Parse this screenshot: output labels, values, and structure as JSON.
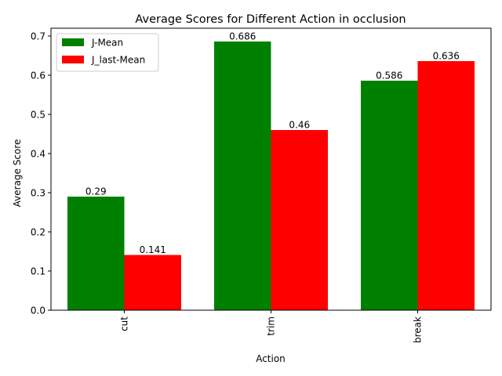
{
  "chart_data": {
    "type": "bar",
    "title": "Average Scores for Different Action in occlusion",
    "xlabel": "Action",
    "ylabel": "Average Score",
    "categories": [
      "cut",
      "trim",
      "break"
    ],
    "series": [
      {
        "name": "J-Mean",
        "values": [
          0.29,
          0.686,
          0.586
        ],
        "color": "#008000"
      },
      {
        "name": "J_last-Mean",
        "values": [
          0.141,
          0.46,
          0.636
        ],
        "color": "#ff0000"
      }
    ],
    "data_labels": [
      [
        "0.29",
        "0.686",
        "0.586"
      ],
      [
        "0.141",
        "0.46",
        "0.636"
      ]
    ],
    "ylim": [
      0,
      0.72
    ],
    "yticks": [
      0.0,
      0.1,
      0.2,
      0.3,
      0.4,
      0.5,
      0.6,
      0.7
    ],
    "ytick_labels": [
      "0.0",
      "0.1",
      "0.2",
      "0.3",
      "0.4",
      "0.5",
      "0.6",
      "0.7"
    ],
    "grid": false,
    "legend_position": "top-left"
  }
}
